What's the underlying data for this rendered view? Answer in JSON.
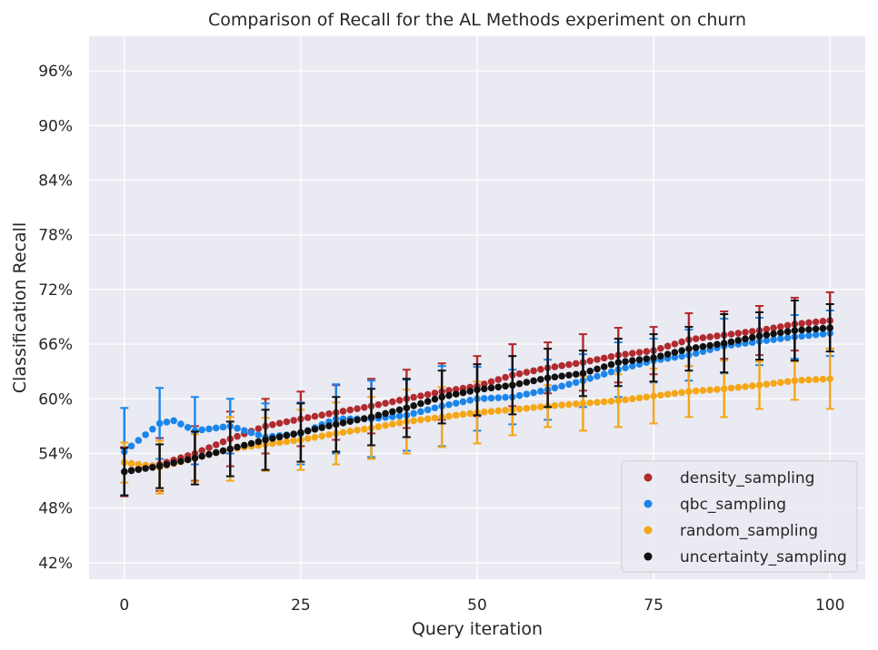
{
  "chart_data": {
    "type": "scatter",
    "title": "Comparison of Recall for the AL Methods experiment on churn",
    "xlabel": "Query iteration",
    "ylabel": "Classification Recall",
    "xlim": [
      -5,
      105
    ],
    "ylim": [
      40.2,
      99.8
    ],
    "xticks": [
      0,
      25,
      50,
      75,
      100
    ],
    "xtick_labels": [
      "0",
      "25",
      "50",
      "75",
      "100"
    ],
    "yticks": [
      42,
      48,
      54,
      60,
      66,
      72,
      78,
      84,
      90,
      96
    ],
    "ytick_labels": [
      "42%",
      "48%",
      "54%",
      "60%",
      "66%",
      "72%",
      "78%",
      "84%",
      "90%",
      "96%"
    ],
    "grid": true,
    "background": "#eaeaf2",
    "legend_position": "lower-right",
    "error_bar_every": 5,
    "series": [
      {
        "name": "density_sampling",
        "color": "#b22a2e",
        "points": [
          [
            0,
            52.0
          ],
          [
            5,
            52.8
          ],
          [
            10,
            54.0
          ],
          [
            15,
            55.6
          ],
          [
            20,
            57.0
          ],
          [
            25,
            57.8
          ],
          [
            30,
            58.5
          ],
          [
            35,
            59.2
          ],
          [
            40,
            60.0
          ],
          [
            45,
            60.8
          ],
          [
            50,
            61.4
          ],
          [
            55,
            62.6
          ],
          [
            60,
            63.4
          ],
          [
            65,
            64.0
          ],
          [
            70,
            64.8
          ],
          [
            75,
            65.3
          ],
          [
            80,
            66.5
          ],
          [
            85,
            67.0
          ],
          [
            90,
            67.5
          ],
          [
            95,
            68.2
          ],
          [
            100,
            68.6
          ]
        ],
        "errors": [
          2.7,
          2.9,
          3.0,
          3.0,
          3.0,
          3.0,
          3.0,
          3.0,
          3.2,
          3.1,
          3.3,
          3.4,
          2.8,
          3.1,
          3.0,
          2.6,
          2.9,
          2.6,
          2.7,
          2.9,
          3.1
        ]
      },
      {
        "name": "qbc_sampling",
        "color": "#1b85eb",
        "points": [
          [
            0,
            54.2
          ],
          [
            5,
            57.3
          ],
          [
            7,
            57.6
          ],
          [
            10,
            56.5
          ],
          [
            15,
            57.0
          ],
          [
            20,
            55.8
          ],
          [
            25,
            56.2
          ],
          [
            30,
            57.8
          ],
          [
            35,
            57.8
          ],
          [
            40,
            58.2
          ],
          [
            45,
            59.2
          ],
          [
            50,
            60.0
          ],
          [
            55,
            60.2
          ],
          [
            60,
            61.0
          ],
          [
            65,
            62.0
          ],
          [
            70,
            63.2
          ],
          [
            75,
            64.2
          ],
          [
            80,
            64.8
          ],
          [
            85,
            65.8
          ],
          [
            90,
            66.3
          ],
          [
            95,
            66.8
          ],
          [
            100,
            67.2
          ]
        ],
        "errors": [
          4.8,
          3.9,
          0,
          3.7,
          3.0,
          3.7,
          3.4,
          3.8,
          4.2,
          3.9,
          4.4,
          3.5,
          3.0,
          3.3,
          2.9,
          3.0,
          2.4,
          2.8,
          3.0,
          2.6,
          2.4,
          2.5
        ]
      },
      {
        "name": "random_sampling",
        "color": "#f5a716",
        "points": [
          [
            0,
            53.0
          ],
          [
            5,
            52.5
          ],
          [
            10,
            53.5
          ],
          [
            15,
            54.5
          ],
          [
            20,
            55.0
          ],
          [
            25,
            55.5
          ],
          [
            30,
            56.2
          ],
          [
            35,
            56.8
          ],
          [
            40,
            57.5
          ],
          [
            45,
            58.0
          ],
          [
            50,
            58.5
          ],
          [
            55,
            58.8
          ],
          [
            60,
            59.2
          ],
          [
            65,
            59.5
          ],
          [
            70,
            59.8
          ],
          [
            75,
            60.3
          ],
          [
            80,
            60.8
          ],
          [
            85,
            61.1
          ],
          [
            90,
            61.5
          ],
          [
            95,
            62.0
          ],
          [
            100,
            62.2
          ]
        ],
        "errors": [
          2.2,
          2.9,
          2.6,
          3.5,
          2.9,
          3.3,
          3.4,
          3.4,
          3.5,
          3.3,
          3.4,
          2.8,
          2.3,
          3.0,
          2.9,
          3.0,
          2.8,
          3.1,
          2.6,
          2.1,
          3.3
        ]
      },
      {
        "name": "uncertainty_sampling",
        "color": "#101010",
        "points": [
          [
            0,
            52.0
          ],
          [
            5,
            52.6
          ],
          [
            10,
            53.5
          ],
          [
            15,
            54.5
          ],
          [
            20,
            55.5
          ],
          [
            25,
            56.3
          ],
          [
            30,
            57.2
          ],
          [
            35,
            58.0
          ],
          [
            40,
            59.0
          ],
          [
            45,
            60.2
          ],
          [
            50,
            61.0
          ],
          [
            55,
            61.5
          ],
          [
            60,
            62.3
          ],
          [
            65,
            62.8
          ],
          [
            70,
            64.0
          ],
          [
            75,
            64.5
          ],
          [
            80,
            65.5
          ],
          [
            85,
            66.1
          ],
          [
            90,
            66.9
          ],
          [
            95,
            67.5
          ],
          [
            100,
            67.8
          ]
        ],
        "errors": [
          2.6,
          2.4,
          2.9,
          3.0,
          3.3,
          3.2,
          3.0,
          3.1,
          3.2,
          2.9,
          2.8,
          3.2,
          3.2,
          2.5,
          2.6,
          2.6,
          2.4,
          3.2,
          2.6,
          3.3,
          2.6
        ]
      }
    ]
  }
}
